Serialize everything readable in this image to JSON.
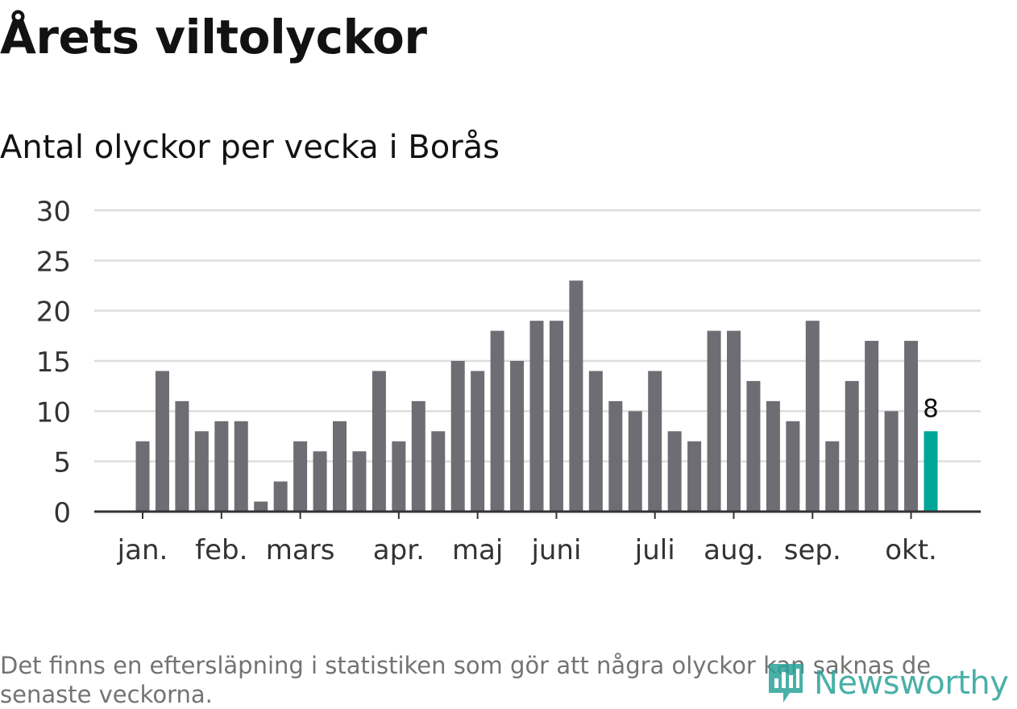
{
  "title": "Årets viltolyckor",
  "subtitle": "Antal olyckor per vecka i Borås",
  "footnote": "Det finns en eftersläpning i statistiken som gör att några olyckor kan saknas de senaste veckorna.",
  "brand": {
    "name": "Newsworthy",
    "icon": "newsworthy-logo-icon",
    "color": "#2aa39a"
  },
  "chart_data": {
    "type": "bar",
    "title": "Årets viltolyckor",
    "subtitle": "Antal olyckor per vecka i Borås",
    "xlabel": "",
    "ylabel": "",
    "ylim": [
      0,
      30
    ],
    "yticks": [
      0,
      5,
      10,
      15,
      20,
      25,
      30
    ],
    "grid": true,
    "month_labels": [
      "jan.",
      "feb.",
      "mars",
      "apr.",
      "maj",
      "juni",
      "juli",
      "aug.",
      "sep.",
      "okt."
    ],
    "month_start_week_index": [
      0,
      4,
      8,
      13,
      17,
      21,
      26,
      30,
      34,
      39
    ],
    "values": [
      7,
      14,
      11,
      8,
      9,
      9,
      1,
      3,
      7,
      6,
      9,
      6,
      14,
      7,
      11,
      8,
      15,
      14,
      18,
      15,
      19,
      19,
      23,
      14,
      11,
      10,
      14,
      8,
      7,
      18,
      18,
      13,
      11,
      9,
      19,
      7,
      13,
      17,
      10,
      17,
      8
    ],
    "highlight_index": 40,
    "highlight_label": "8",
    "bar_color": "#6e6d73",
    "highlight_color": "#00a59a",
    "grid_color": "#dddddd",
    "axis_color": "#333333"
  }
}
